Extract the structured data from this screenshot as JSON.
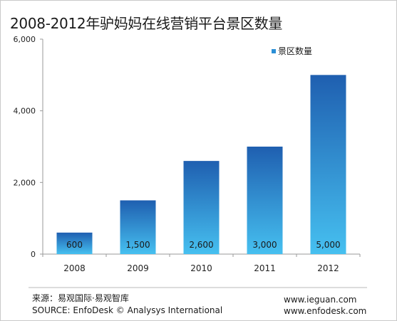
{
  "chart_data": {
    "type": "bar",
    "title": "2008-2012年驴妈妈在线营销平台景区数量",
    "categories": [
      "2008",
      "2009",
      "2010",
      "2011",
      "2012"
    ],
    "series": [
      {
        "name": "景区数量",
        "values": [
          600,
          1500,
          2600,
          3000,
          5000
        ]
      }
    ],
    "data_labels": [
      "600",
      "1,500",
      "2,600",
      "3,000",
      "5,000"
    ],
    "y_ticks": [
      0,
      2000,
      4000,
      6000
    ],
    "y_tick_labels": [
      "0",
      "2,000",
      "4,000",
      "6,000"
    ],
    "ylim": [
      0,
      6000
    ],
    "xlabel": "",
    "ylabel": "",
    "grid": false,
    "legend_position": "top-right",
    "bar_color_top": "#1f5fb0",
    "bar_color_bottom": "#46c0f0",
    "legend_color": "#2b8fd6"
  },
  "footer": {
    "source_cn": "来源：易观国际·易观智库",
    "source_en": "SOURCE: EnfoDesk © Analysys International",
    "url_1": "www.ieguan.com",
    "url_2": "www.enfodesk.com"
  }
}
